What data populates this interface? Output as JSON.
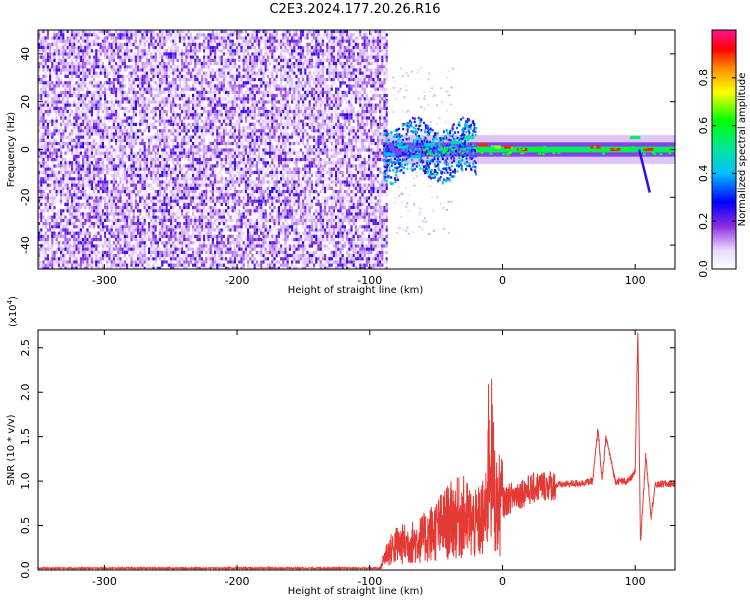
{
  "title": "C2E3.2024.177.20.26.R16",
  "chart_data": [
    {
      "type": "heatmap",
      "xlabel": "Height of straight line (km)",
      "ylabel": "Frequency (Hz)",
      "xlim": [
        -350,
        130
      ],
      "ylim": [
        -50,
        50
      ],
      "x_ticks": [
        -300,
        -200,
        -100,
        0,
        100
      ],
      "x_tick_labels": [
        "-300",
        "-200",
        "-100",
        "0",
        "100"
      ],
      "y_ticks": [
        40,
        20,
        0,
        -20,
        -40
      ],
      "y_tick_labels": [
        "40",
        "20",
        "0",
        "-20",
        "-40"
      ],
      "noise_region_x": [
        -350,
        -88
      ],
      "signal_line_freq": 0,
      "signal_points": [
        {
          "x": -85,
          "f": -2,
          "a": 0.4
        },
        {
          "x": -75,
          "f": 1,
          "a": 0.45
        },
        {
          "x": -65,
          "f": -3,
          "a": 0.4
        },
        {
          "x": -55,
          "f": 2,
          "a": 0.42
        },
        {
          "x": -45,
          "f": 0,
          "a": 0.45
        },
        {
          "x": -35,
          "f": 3,
          "a": 0.48
        },
        {
          "x": -25,
          "f": 5,
          "a": 0.5
        },
        {
          "x": -15,
          "f": 2,
          "a": 0.9
        },
        {
          "x": -5,
          "f": 1,
          "a": 0.7
        },
        {
          "x": 5,
          "f": 1,
          "a": 0.9
        },
        {
          "x": 15,
          "f": 0,
          "a": 0.9
        },
        {
          "x": 25,
          "f": 0,
          "a": 0.6
        },
        {
          "x": 40,
          "f": 0,
          "a": 0.55
        },
        {
          "x": 55,
          "f": 0,
          "a": 0.55
        },
        {
          "x": 70,
          "f": 1,
          "a": 0.9
        },
        {
          "x": 85,
          "f": 0,
          "a": 0.9
        },
        {
          "x": 100,
          "f": 5,
          "a": 0.55
        },
        {
          "x": 110,
          "f": 0,
          "a": 0.9
        },
        {
          "x": 125,
          "f": 0,
          "a": 0.55
        }
      ],
      "branch": {
        "x": [
          103,
          111
        ],
        "f": [
          0,
          -18
        ]
      },
      "colorbar": {
        "label": "Normalized spectral amplitude",
        "ticks": [
          0.0,
          0.2,
          0.4,
          0.6,
          0.8
        ],
        "tick_labels": [
          "0.0",
          "0.2",
          "0.4",
          "0.6",
          "0.8"
        ],
        "range": [
          0,
          1
        ]
      }
    },
    {
      "type": "line",
      "xlabel": "Height of straight line (km)",
      "ylabel": "SNR (10 * v/v)",
      "scale_label": "(x10",
      "scale_exp": "4",
      "scale_close": ")",
      "xlim": [
        -350,
        130
      ],
      "ylim": [
        0,
        2.7
      ],
      "x_ticks": [
        -300,
        -200,
        -100,
        0,
        100
      ],
      "x_tick_labels": [
        "-300",
        "-200",
        "-100",
        "0",
        "100"
      ],
      "y_ticks": [
        0.0,
        0.5,
        1.0,
        1.5,
        2.0,
        2.5
      ],
      "y_tick_labels": [
        "0.0",
        "0.5",
        "1.0",
        "1.5",
        "2.0",
        "2.5"
      ],
      "color": "#e53935",
      "series": [
        {
          "x": [
            -350,
            -92,
            -88,
            -80,
            -70,
            -60,
            -50,
            -40,
            -30,
            -20,
            -12,
            -10,
            -5,
            0,
            10,
            20,
            30,
            40,
            50,
            60,
            68,
            72,
            75,
            78,
            85,
            95,
            100,
            102,
            104,
            108,
            112,
            115,
            120,
            130
          ],
          "y": [
            0.02,
            0.02,
            0.18,
            0.28,
            0.3,
            0.35,
            0.45,
            0.55,
            0.6,
            0.5,
            0.62,
            1.5,
            0.7,
            0.75,
            0.85,
            0.9,
            0.95,
            0.95,
            0.97,
            0.98,
            1.0,
            1.6,
            1.0,
            1.5,
            1.0,
            1.0,
            1.1,
            2.7,
            0.3,
            1.3,
            0.6,
            0.95,
            0.97,
            0.97
          ]
        }
      ]
    }
  ]
}
